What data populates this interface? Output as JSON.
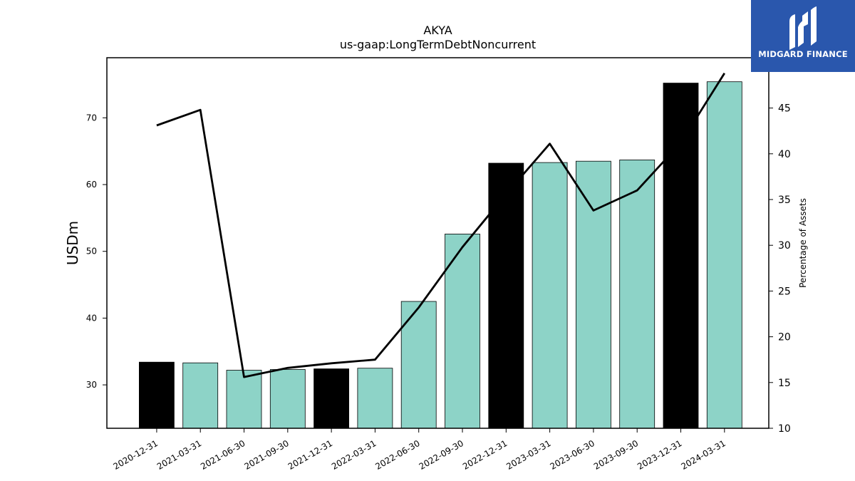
{
  "chart_data": {
    "type": "bar",
    "title": "AKYA",
    "subtitle": "us-gaap:LongTermDebtNoncurrent",
    "ylabel": "USDm",
    "y2label": "Percentage of Assets",
    "ylim": [
      23.5,
      79
    ],
    "y2lim": [
      10,
      50.5
    ],
    "yticks": [
      30,
      40,
      50,
      60,
      70
    ],
    "y2ticks": [
      10,
      15,
      20,
      25,
      30,
      35,
      40,
      45
    ],
    "categories": [
      "2020-12-31",
      "2021-03-31",
      "2021-06-30",
      "2021-09-30",
      "2021-12-31",
      "2022-03-31",
      "2022-06-30",
      "2022-09-30",
      "2022-12-31",
      "2023-03-31",
      "2023-06-30",
      "2023-09-30",
      "2023-12-31",
      "2024-03-31"
    ],
    "series": [
      {
        "type": "bar",
        "values": [
          33.4,
          33.3,
          32.2,
          32.3,
          32.4,
          32.5,
          42.5,
          52.6,
          63.2,
          63.3,
          63.5,
          63.7,
          75.2,
          75.4
        ],
        "colors": [
          "#000000",
          "#8dd3c7",
          "#8dd3c7",
          "#8dd3c7",
          "#000000",
          "#8dd3c7",
          "#8dd3c7",
          "#8dd3c7",
          "#000000",
          "#8dd3c7",
          "#8dd3c7",
          "#8dd3c7",
          "#000000",
          "#8dd3c7"
        ]
      },
      {
        "type": "line",
        "axis": "right",
        "values": [
          43.1,
          44.8,
          15.6,
          16.6,
          17.1,
          17.5,
          23.2,
          29.8,
          35.6,
          41.1,
          33.8,
          36.0,
          41.2,
          48.8
        ],
        "color": "#000000"
      }
    ],
    "grid": false
  },
  "logo": {
    "text": "MIDGARD FINANCE",
    "color": "#2a57ad"
  }
}
